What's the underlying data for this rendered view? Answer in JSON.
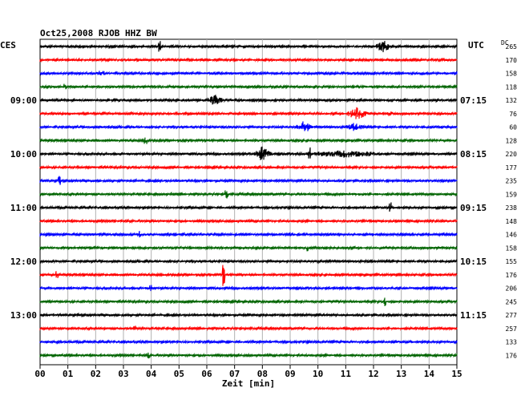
{
  "header": {
    "title": "Oct25,2008   RJOB HHZ BW",
    "left_zone": "CES",
    "right_zone": "UTC",
    "dc_label": "DC"
  },
  "chart_data": {
    "type": "line",
    "xlabel": "Zeit [min]",
    "xlim": [
      0,
      15
    ],
    "x_ticks": [
      "00",
      "01",
      "02",
      "03",
      "04",
      "05",
      "06",
      "07",
      "08",
      "09",
      "10",
      "11",
      "12",
      "13",
      "14",
      "15"
    ],
    "colors": [
      "#000000",
      "#ff0000",
      "#0000ff",
      "#006400"
    ],
    "left_time_labels": [
      {
        "row": 4,
        "label": "09:00"
      },
      {
        "row": 8,
        "label": "10:00"
      },
      {
        "row": 12,
        "label": "11:00"
      },
      {
        "row": 16,
        "label": "12:00"
      },
      {
        "row": 20,
        "label": "13:00"
      }
    ],
    "right_time_labels": [
      {
        "row": 4,
        "label": "07:15"
      },
      {
        "row": 8,
        "label": "08:15"
      },
      {
        "row": 12,
        "label": "09:15"
      },
      {
        "row": 16,
        "label": "10:15"
      },
      {
        "row": 20,
        "label": "11:15"
      }
    ],
    "dc_values": [
      "265",
      "170",
      "158",
      "118",
      "132",
      "76",
      "60",
      "128",
      "220",
      "177",
      "235",
      "159",
      "238",
      "148",
      "146",
      "158",
      "155",
      "176",
      "206",
      "245",
      "277",
      "257",
      "133",
      "176"
    ],
    "events": [
      {
        "row": 0,
        "minute": 12.35,
        "amp": 9,
        "width": 0.45
      },
      {
        "row": 0,
        "minute": 4.3,
        "amp": 7,
        "width": 0.04
      },
      {
        "row": 2,
        "minute": 2.2,
        "amp": 5,
        "width": 0.3
      },
      {
        "row": 3,
        "minute": 0.9,
        "amp": 6,
        "width": 0.05
      },
      {
        "row": 4,
        "minute": 6.3,
        "amp": 8,
        "width": 0.5
      },
      {
        "row": 5,
        "minute": 11.4,
        "amp": 9,
        "width": 0.6
      },
      {
        "row": 5,
        "minute": 12.6,
        "amp": 5,
        "width": 0.2
      },
      {
        "row": 6,
        "minute": 9.5,
        "amp": 9,
        "width": 0.45
      },
      {
        "row": 6,
        "minute": 11.3,
        "amp": 6,
        "width": 0.6
      },
      {
        "row": 7,
        "minute": 3.8,
        "amp": 5,
        "width": 0.05
      },
      {
        "row": 8,
        "minute": 8.0,
        "amp": 10,
        "width": 0.5
      },
      {
        "row": 8,
        "minute": 9.7,
        "amp": 9,
        "width": 0.05
      },
      {
        "row": 8,
        "minute": 11.0,
        "amp": 5,
        "width": 3.0
      },
      {
        "row": 10,
        "minute": 0.7,
        "amp": 6,
        "width": 0.05
      },
      {
        "row": 11,
        "minute": 6.7,
        "amp": 6,
        "width": 0.05
      },
      {
        "row": 12,
        "minute": 12.6,
        "amp": 8,
        "width": 0.04
      },
      {
        "row": 14,
        "minute": 3.6,
        "amp": 5,
        "width": 0.05
      },
      {
        "row": 15,
        "minute": 9.6,
        "amp": 6,
        "width": 0.04
      },
      {
        "row": 16,
        "minute": 10.0,
        "amp": 4,
        "width": 0.05
      },
      {
        "row": 17,
        "minute": 0.6,
        "amp": 5,
        "width": 0.05
      },
      {
        "row": 17,
        "minute": 6.6,
        "amp": 14,
        "width": 0.04
      },
      {
        "row": 18,
        "minute": 4.0,
        "amp": 4,
        "width": 0.05
      },
      {
        "row": 19,
        "minute": 12.4,
        "amp": 6,
        "width": 0.04
      },
      {
        "row": 21,
        "minute": 3.4,
        "amp": 6,
        "width": 0.05
      },
      {
        "row": 23,
        "minute": 3.9,
        "amp": 4,
        "width": 0.05
      }
    ]
  }
}
